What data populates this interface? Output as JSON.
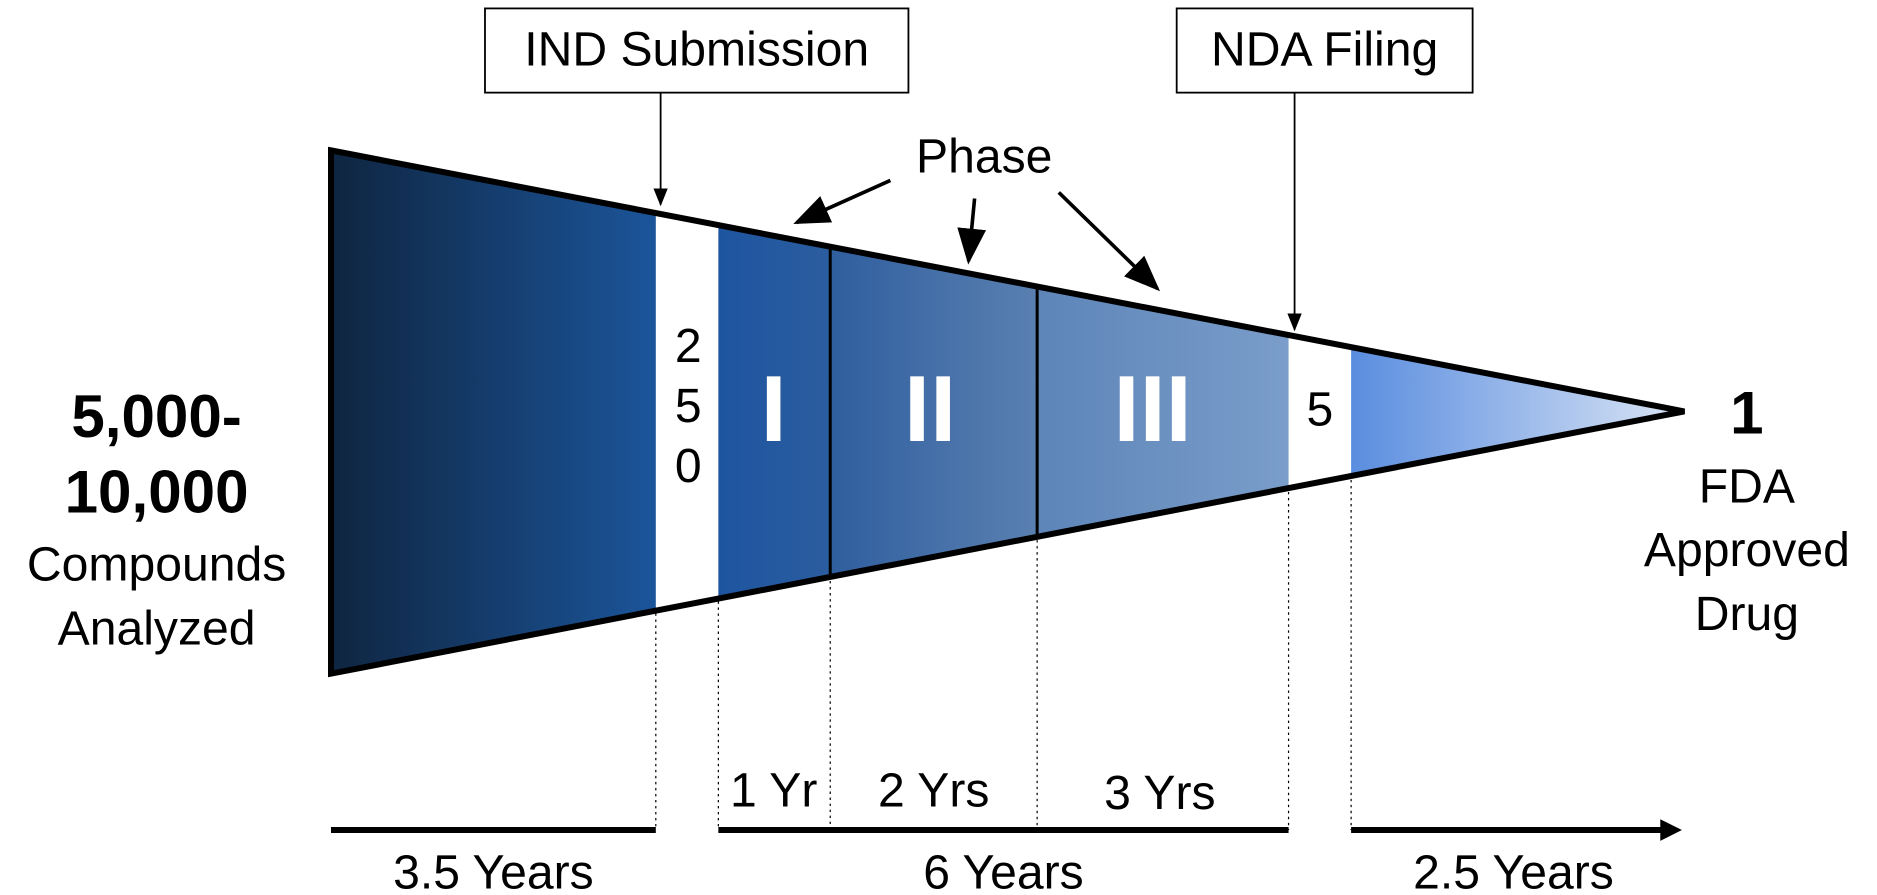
{
  "left": {
    "count_line1": "5,000-",
    "count_line2": "10,000",
    "label_line1": "Compounds",
    "label_line2": "Analyzed"
  },
  "right": {
    "count": "1",
    "label_line1": "FDA",
    "label_line2": "Approved",
    "label_line3": "Drug"
  },
  "milestones": [
    "IND Submission",
    "NDA Filing"
  ],
  "phase_label": "Phase",
  "stages": {
    "ind_count": "250",
    "phase1": "I",
    "phase2": "II",
    "phase3": "III",
    "nda_count": "5"
  },
  "phase_durations": [
    "1 Yr",
    "2 Yrs",
    "3 Yrs"
  ],
  "periods": [
    "3.5 Years",
    "6 Years",
    "2.5 Years"
  ]
}
